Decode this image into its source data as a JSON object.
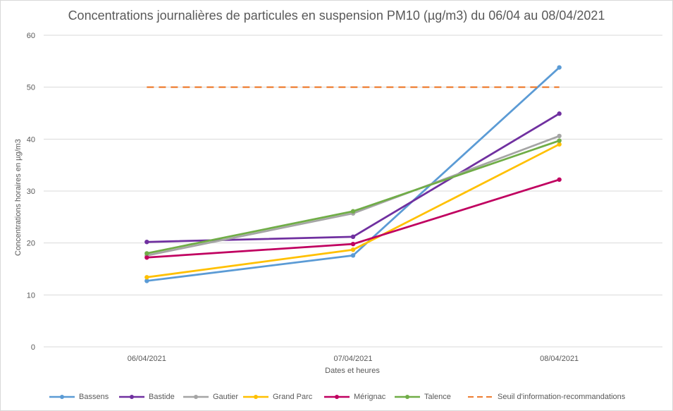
{
  "chart_data": {
    "type": "line",
    "title": "Concentrations journalières de particules en suspension PM10 (µg/m3) du 06/04 au 08/04/2021",
    "xlabel": "Dates et heures",
    "ylabel": "Concentrations horaires en µg/m3",
    "categories": [
      "06/04/2021",
      "07/04/2021",
      "08/04/2021"
    ],
    "ylim": [
      0,
      60
    ],
    "yticks": [
      0,
      10,
      20,
      30,
      40,
      50,
      60
    ],
    "grid": true,
    "legend_position": "bottom",
    "series": [
      {
        "name": "Bassens",
        "color": "#5b9bd5",
        "values": [
          12.7,
          17.6,
          53.8
        ],
        "dashed": false
      },
      {
        "name": "Bastide",
        "color": "#7030a0",
        "values": [
          20.2,
          21.2,
          44.9
        ],
        "dashed": false
      },
      {
        "name": "Gautier",
        "color": "#a5a5a5",
        "values": [
          17.6,
          25.7,
          40.6
        ],
        "dashed": false
      },
      {
        "name": "Grand Parc",
        "color": "#ffc000",
        "values": [
          13.4,
          18.7,
          39.0
        ],
        "dashed": false
      },
      {
        "name": "Mérignac",
        "color": "#c00060",
        "values": [
          17.2,
          19.8,
          32.2
        ],
        "dashed": false
      },
      {
        "name": "Talence",
        "color": "#70ad47",
        "values": [
          18.0,
          26.1,
          39.7
        ],
        "dashed": false
      },
      {
        "name": "Seuil d'information-recommandations",
        "color": "#ed7d31",
        "values": [
          50,
          50,
          50
        ],
        "dashed": true
      }
    ]
  }
}
